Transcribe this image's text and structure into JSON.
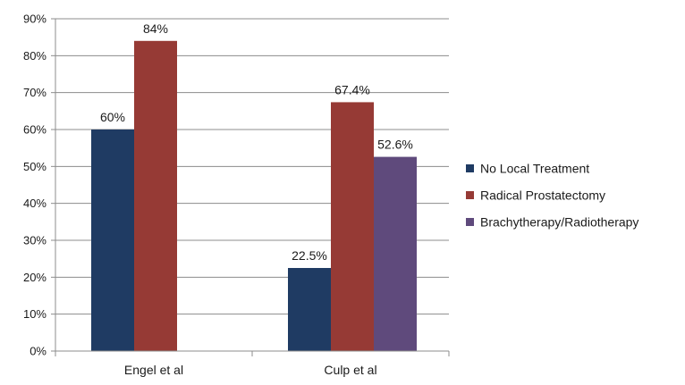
{
  "chart_data": {
    "type": "bar",
    "categories": [
      "Engel et al",
      "Culp et al"
    ],
    "series": [
      {
        "name": "No Local Treatment",
        "color": "#1f3b63",
        "values": [
          60,
          22.5
        ],
        "labels": [
          "60%",
          "22.5%"
        ]
      },
      {
        "name": "Radical Prostatectomy",
        "color": "#963a35",
        "values": [
          84,
          67.4
        ],
        "labels": [
          "84%",
          "67.4%"
        ]
      },
      {
        "name": "Brachytherapy/Radiotherapy",
        "color": "#5f4a7c",
        "values": [
          null,
          52.6
        ],
        "labels": [
          null,
          "52.6%"
        ]
      }
    ],
    "ylim": [
      0,
      90
    ],
    "yticks": [
      0,
      10,
      20,
      30,
      40,
      50,
      60,
      70,
      80,
      90
    ],
    "ytick_labels": [
      "0%",
      "10%",
      "20%",
      "30%",
      "40%",
      "50%",
      "60%",
      "70%",
      "80%",
      "90%"
    ],
    "grid": true,
    "legend_position": "right",
    "title": "",
    "xlabel": "",
    "ylabel": ""
  }
}
